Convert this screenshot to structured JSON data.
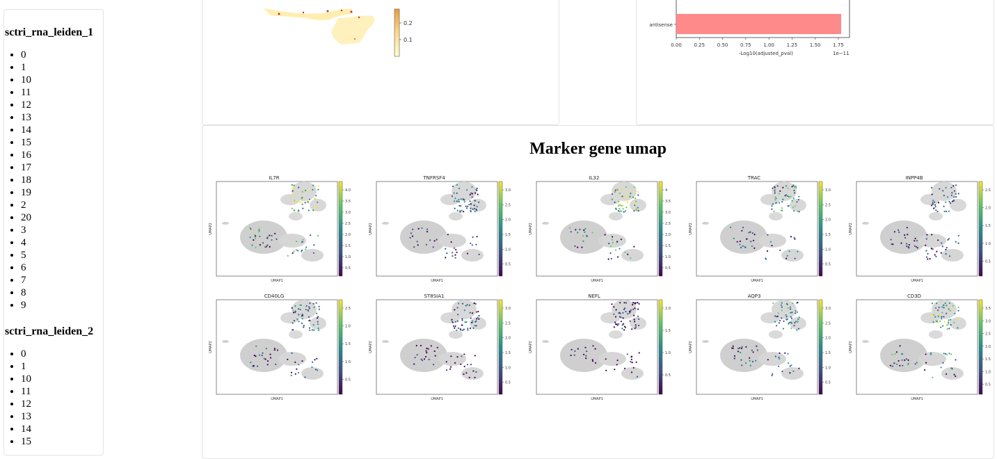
{
  "sidebar": {
    "group1": {
      "title": "sctri_rna_leiden_1",
      "items": [
        "0",
        "1",
        "10",
        "11",
        "12",
        "13",
        "14",
        "15",
        "16",
        "17",
        "18",
        "19",
        "2",
        "20",
        "3",
        "4",
        "5",
        "6",
        "7",
        "8",
        "9"
      ]
    },
    "group2": {
      "title": "sctri_rna_leiden_2",
      "items": [
        "0",
        "1",
        "10",
        "11",
        "12",
        "13",
        "14",
        "15"
      ]
    }
  },
  "heatmap_colorbar": {
    "ticks": [
      "0.2",
      "0.1"
    ]
  },
  "enrichment_bar": {
    "category": "antisense",
    "value": 1.78,
    "xticks": [
      "0.00",
      "0.25",
      "0.50",
      "0.75",
      "1.00",
      "1.25",
      "1.50",
      "1.75"
    ],
    "xlabel": "-Log10(adjusted_pval)",
    "scale": "1e−11",
    "bar_color": "#ff8a8a"
  },
  "umap_section": {
    "title": "Marker gene umap",
    "xlabel": "UMAP1",
    "ylabel": "UMAP2",
    "panels": [
      {
        "gene": "IL7R",
        "ticks": [
          "4.0",
          "3.5",
          "3.0",
          "2.5",
          "2.0",
          "1.5",
          "1.0",
          "0.5"
        ]
      },
      {
        "gene": "TNFRSF4",
        "ticks": [
          "3.0",
          "2.5",
          "2.0",
          "1.5",
          "1.0",
          "0.5"
        ]
      },
      {
        "gene": "IL32",
        "ticks": [
          "4",
          "3.5",
          "3.0",
          "2.5",
          "2.0",
          "1.5",
          "1.0",
          "0.5"
        ]
      },
      {
        "gene": "TRAC",
        "ticks": [
          "3.0",
          "2.5",
          "2.0",
          "1.5",
          "1.0",
          "0.5"
        ]
      },
      {
        "gene": "INPP4B",
        "ticks": [
          "2.5",
          "2.0",
          "1.5",
          "1.0",
          "0.5"
        ]
      },
      {
        "gene": "CD40LG",
        "ticks": [
          "2.5",
          "2.0",
          "1.5",
          "1.0",
          "0.5"
        ]
      },
      {
        "gene": "ST8SIA1",
        "ticks": [
          "3.0",
          "2.5",
          "2.0",
          "1.5",
          "1.0",
          "0.5"
        ]
      },
      {
        "gene": "NEFL",
        "ticks": [
          "2.0",
          "1.5",
          "1.0",
          "0.5"
        ]
      },
      {
        "gene": "AQP3",
        "ticks": [
          "3.0",
          "2.5",
          "2.0",
          "1.5",
          "1.0",
          "0.5"
        ]
      },
      {
        "gene": "CD3D",
        "ticks": [
          "3.5",
          "3.0",
          "2.5",
          "2.0",
          "1.5",
          "1.0",
          "0.5"
        ]
      }
    ]
  }
}
